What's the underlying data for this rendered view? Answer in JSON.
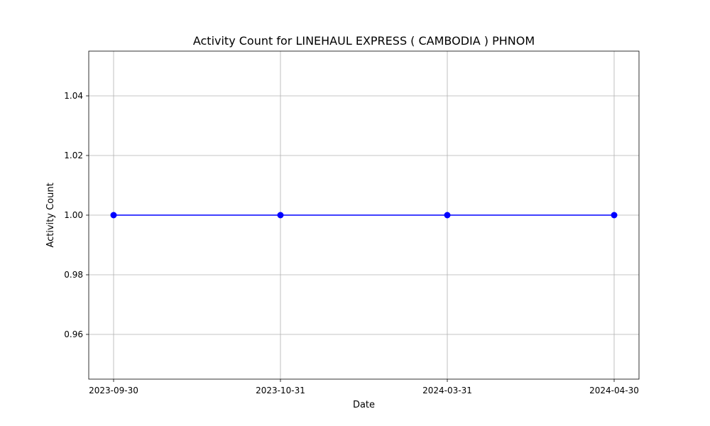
{
  "chart_data": {
    "type": "line",
    "title": "Activity Count for LINEHAUL EXPRESS ( CAMBODIA ) PHNOM",
    "xlabel": "Date",
    "ylabel": "Activity Count",
    "categories": [
      "2023-09-30",
      "2023-10-31",
      "2024-03-31",
      "2024-04-30"
    ],
    "series": [
      {
        "values": [
          1,
          1,
          1,
          1
        ],
        "color": "#0000ff",
        "marker": "circle"
      }
    ],
    "ylim": [
      0.945,
      1.055
    ],
    "yticks": [
      0.96,
      0.98,
      1.0,
      1.02,
      1.04
    ],
    "ytick_labels": [
      "0.96",
      "0.98",
      "1.00",
      "1.02",
      "1.04"
    ],
    "grid": true,
    "legend": "none"
  }
}
